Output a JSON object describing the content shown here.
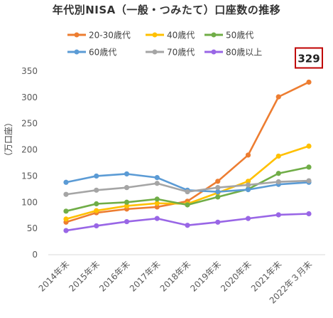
{
  "chart_data": {
    "type": "line",
    "title": "年代別NISA（一般・つみたて）口座数の推移",
    "ylabel": "（万口座）",
    "ylim": [
      0,
      350
    ],
    "yticks": [
      0,
      50,
      100,
      150,
      200,
      250,
      300,
      350
    ],
    "grid": false,
    "legend_position": "top",
    "categories": [
      "2014年末",
      "2015年末",
      "2016年末",
      "2017年末",
      "2018年末",
      "2019年末",
      "2020年末",
      "2021年末",
      "2022年３月末"
    ],
    "series": [
      {
        "name": "20-30歳代",
        "color": "#ED7D31",
        "values": [
          62,
          80,
          87,
          91,
          102,
          140,
          190,
          301,
          329
        ]
      },
      {
        "name": "40歳代",
        "color": "#FFC000",
        "values": [
          68,
          84,
          93,
          98,
          97,
          118,
          140,
          188,
          207
        ]
      },
      {
        "name": "50歳代",
        "color": "#70AD47",
        "values": [
          83,
          97,
          100,
          106,
          95,
          110,
          125,
          155,
          167
        ]
      },
      {
        "name": "60歳代",
        "color": "#5B9BD5",
        "values": [
          138,
          150,
          154,
          147,
          123,
          120,
          124,
          134,
          138
        ]
      },
      {
        "name": "70歳代",
        "color": "#A5A5A5",
        "values": [
          115,
          123,
          128,
          136,
          120,
          128,
          133,
          139,
          141
        ]
      },
      {
        "name": "80歳以上",
        "color": "#9966E6",
        "values": [
          46,
          55,
          63,
          69,
          56,
          62,
          69,
          76,
          78
        ]
      }
    ],
    "annotation": {
      "text": "329",
      "series": "20-30歳代",
      "category": "2022年３月末",
      "border_color": "#C00000"
    }
  }
}
